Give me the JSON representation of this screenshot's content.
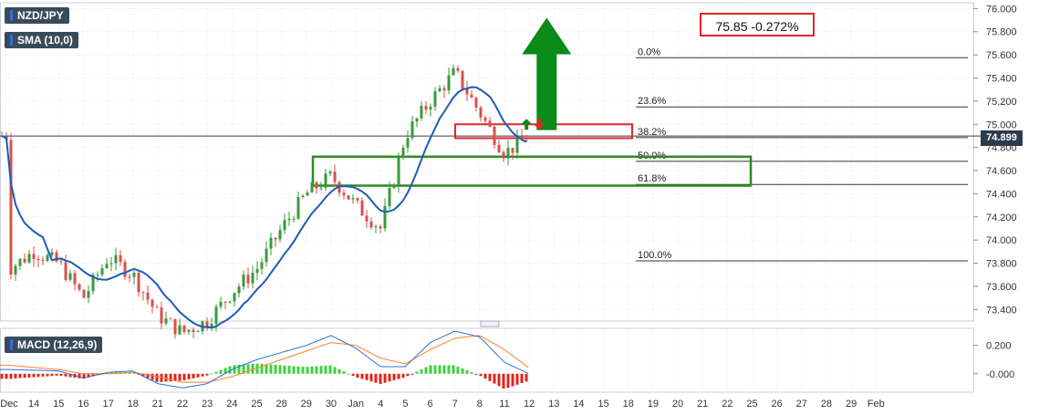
{
  "instrument": "NZD/JPY",
  "indicators": {
    "sma_label": "SMA (10,0)",
    "macd_label": "MACD (12,26,9)"
  },
  "quote": "75.85 -0.272%",
  "current_price_label": "74.899",
  "colors": {
    "up": "#3a9a3a",
    "down": "#d9504d",
    "sma": "#1e5bb8",
    "macd_line": "#2f6fd6",
    "signal_line": "#ff7f27",
    "hist_up": "#3cd23c",
    "hist_down": "#e2231a",
    "zone": "#2e8b1e",
    "box": "#e0262b",
    "arrow": "#0a8a17"
  },
  "chart_data": [
    {
      "type": "candlestick",
      "title": "NZD/JPY",
      "x_tick_labels": [
        "Dec",
        "14",
        "15",
        "16",
        "17",
        "18",
        "21",
        "22",
        "23",
        "24",
        "25",
        "28",
        "29",
        "30",
        "Jan",
        "4",
        "5",
        "6",
        "7",
        "8",
        "11",
        "12",
        "13",
        "14",
        "15",
        "18",
        "19",
        "20",
        "21",
        "22",
        "25",
        "26",
        "27",
        "28",
        "29",
        "Feb"
      ],
      "y_tick_labels": [
        "76.000",
        "75.800",
        "75.600",
        "75.400",
        "75.200",
        "75.000",
        "74.800",
        "74.600",
        "74.400",
        "74.200",
        "74.000",
        "73.800",
        "73.600",
        "73.400"
      ],
      "ylim": [
        73.3,
        76.05
      ],
      "fib_levels": [
        {
          "label": "0.0%",
          "value": 75.575
        },
        {
          "label": "23.6%",
          "value": 75.15
        },
        {
          "label": "38.2%",
          "value": 74.885
        },
        {
          "label": "50.0%",
          "value": 74.68
        },
        {
          "label": "61.8%",
          "value": 74.48
        },
        {
          "label": "100.0%",
          "value": 73.82
        }
      ],
      "current_price": 74.899,
      "zones": [
        {
          "kind": "support",
          "from_date": "28",
          "to_date": "21",
          "low": 74.47,
          "high": 74.72
        },
        {
          "kind": "resistance",
          "from_date": "5",
          "to_date": "15",
          "low": 74.88,
          "high": 75.0
        }
      ],
      "up_arrow": {
        "date": "13",
        "from": 74.95,
        "to": 75.92
      },
      "sma_period": 10,
      "candles_x": [
        0,
        1,
        2,
        3,
        4,
        5,
        6,
        7,
        8,
        9,
        10,
        11,
        12,
        13,
        14,
        15,
        16,
        17,
        18,
        19,
        20,
        21,
        22,
        23,
        24,
        25,
        26,
        27,
        28,
        29,
        30,
        31,
        32,
        33,
        34,
        35,
        36,
        37,
        38,
        39,
        40,
        41,
        42,
        43,
        44,
        45,
        46,
        47,
        48,
        49,
        50,
        51,
        52,
        53,
        54,
        55,
        56,
        57,
        58,
        59,
        60,
        61,
        62,
        63,
        64,
        65,
        66,
        67,
        68,
        69,
        70,
        71,
        72,
        73,
        74,
        75,
        76,
        77,
        78,
        79,
        80,
        81,
        82,
        83,
        84,
        85,
        86,
        87,
        88,
        89,
        90,
        91,
        92,
        93,
        94,
        95,
        96,
        97,
        98,
        99,
        100,
        101,
        102,
        103,
        104,
        105,
        106,
        107,
        108,
        109,
        110,
        111,
        112,
        113,
        114,
        115,
        116,
        117,
        118,
        119,
        120,
        121,
        122,
        123,
        124,
        125,
        126,
        127,
        128,
        129,
        130,
        131,
        132,
        133,
        134,
        135,
        136,
        137,
        138,
        139,
        140,
        141,
        142,
        143,
        144,
        145,
        146,
        147,
        148,
        149,
        150,
        151,
        152,
        153,
        154,
        155,
        156,
        157,
        158,
        159,
        160,
        161,
        162,
        163,
        164,
        165,
        166,
        167,
        168,
        169,
        170,
        171,
        172,
        173,
        174,
        175,
        176,
        177,
        178,
        179,
        180,
        181,
        182,
        183,
        184,
        185,
        186,
        187,
        188,
        189,
        190,
        191,
        192,
        193,
        194,
        195,
        196,
        197,
        198,
        199,
        200,
        201,
        202,
        203,
        204,
        205,
        206,
        207,
        208,
        209,
        210,
        211,
        212,
        213,
        214,
        215,
        216,
        217,
        218,
        219,
        220,
        221,
        222,
        223,
        224,
        225,
        226,
        227,
        228,
        229,
        230,
        231,
        232,
        233,
        234,
        235,
        236,
        237,
        238,
        239,
        240,
        241,
        242,
        243,
        244,
        245,
        246,
        247,
        248,
        249,
        250,
        251,
        252,
        253,
        254,
        255,
        256,
        257,
        258,
        259,
        260,
        261,
        262,
        263,
        264,
        265,
        266,
        267,
        268,
        269,
        270,
        271,
        272,
        273,
        274,
        275,
        276,
        277,
        278,
        279,
        280,
        281,
        282,
        283,
        284,
        285,
        286,
        287,
        288,
        289,
        290,
        291,
        292,
        293,
        294,
        295,
        296,
        297,
        298,
        299,
        300,
        301,
        302,
        303,
        304,
        305,
        306,
        307,
        308,
        309,
        310,
        311,
        312,
        313,
        314,
        315,
        316,
        317,
        318,
        319,
        320,
        321,
        322,
        323,
        324,
        325,
        326,
        327,
        328,
        329,
        330,
        331,
        332,
        333,
        334,
        335,
        336,
        337,
        338,
        339,
        340,
        341,
        342,
        343,
        344,
        345,
        346,
        347,
        348,
        349,
        350,
        351,
        352,
        353,
        354,
        355,
        356,
        357,
        358,
        359,
        360,
        361,
        362,
        363,
        364,
        365,
        366,
        367,
        368,
        369,
        370,
        371,
        372,
        373,
        374,
        375,
        376,
        377,
        378,
        379,
        380,
        381,
        382,
        383,
        384,
        385,
        386,
        387,
        388,
        389,
        390,
        391,
        392,
        393,
        394,
        395,
        396,
        397,
        398,
        399,
        400,
        401,
        402,
        403,
        404,
        405,
        406,
        407,
        408,
        409,
        410,
        411,
        412,
        413,
        414,
        415,
        416,
        417,
        418,
        419,
        420,
        421,
        422,
        423,
        424,
        425,
        426,
        427,
        428,
        429,
        430,
        431,
        432,
        433,
        434,
        435,
        436,
        437,
        438,
        439,
        440,
        441,
        442,
        443,
        444,
        445,
        446,
        447,
        448,
        449,
        450,
        451,
        452,
        453,
        454,
        455,
        456,
        457,
        458,
        459,
        460,
        461,
        462,
        463,
        464,
        465,
        466,
        467,
        468,
        469,
        470,
        471,
        472,
        473,
        474,
        475,
        476,
        477,
        478,
        479,
        480,
        481,
        482,
        483,
        484,
        485,
        486,
        487,
        488,
        489,
        490,
        491,
        492,
        493,
        494,
        495,
        496,
        497,
        498,
        499,
        500,
        501,
        502,
        503,
        504,
        505,
        506,
        507,
        508,
        509,
        510,
        511,
        512,
        513,
        514,
        515,
        516,
        517,
        518,
        519,
        520,
        521,
        522,
        523,
        524,
        525,
        526,
        527,
        528,
        529,
        530,
        531,
        532,
        533,
        534,
        535,
        536,
        537,
        538,
        539,
        540,
        541,
        542,
        543,
        544,
        545,
        546,
        547,
        548,
        549,
        550,
        551,
        552,
        553,
        554,
        555,
        556,
        557,
        558,
        559,
        560,
        561,
        562,
        563,
        564,
        565,
        566,
        567,
        568,
        569,
        570,
        571,
        572,
        573,
        574,
        575,
        576,
        577,
        578,
        579,
        580,
        581,
        582,
        583,
        584,
        585,
        586,
        587,
        588,
        589,
        590,
        591,
        592,
        593,
        594,
        595,
        596,
        597,
        598,
        599,
        600,
        601,
        602,
        603,
        604,
        605,
        606,
        607,
        608,
        609,
        610,
        611,
        612
      ],
      "closes_keypoints": [
        {
          "at": "Dec",
          "value": 73.75
        },
        {
          "at": "14",
          "value": 73.9
        },
        {
          "at": "15",
          "value": 73.8
        },
        {
          "at": "16",
          "value": 73.5
        },
        {
          "at": "17",
          "value": 73.85
        },
        {
          "at": "18",
          "value": 73.7
        },
        {
          "at": "21",
          "value": 73.35
        },
        {
          "at": "22",
          "value": 73.2
        },
        {
          "at": "23",
          "value": 73.3
        },
        {
          "at": "24",
          "value": 73.55
        },
        {
          "at": "25",
          "value": 73.75
        },
        {
          "at": "28",
          "value": 74.1
        },
        {
          "at": "29",
          "value": 74.4
        },
        {
          "at": "30",
          "value": 74.55
        },
        {
          "at": "Jan",
          "value": 74.3
        },
        {
          "at": "4",
          "value": 74.1
        },
        {
          "at": "5",
          "value": 74.9
        },
        {
          "at": "6",
          "value": 75.2
        },
        {
          "at": "7",
          "value": 75.45
        },
        {
          "at": "8",
          "value": 75.1
        },
        {
          "at": "11",
          "value": 74.75
        },
        {
          "at": "12",
          "value": 74.899
        }
      ]
    },
    {
      "type": "bar",
      "title": "MACD (12,26,9)",
      "y_tick_labels": [
        "0.200",
        "-0.000"
      ],
      "ylim": [
        -0.13,
        0.32
      ],
      "series": [
        {
          "name": "MACD",
          "values_keypoints": [
            {
              "at": "Dec",
              "value": 0.03
            },
            {
              "at": "15",
              "value": 0.02
            },
            {
              "at": "16",
              "value": -0.03
            },
            {
              "at": "17",
              "value": 0.01
            },
            {
              "at": "18",
              "value": 0.02
            },
            {
              "at": "21",
              "value": -0.07
            },
            {
              "at": "22",
              "value": -0.1
            },
            {
              "at": "23",
              "value": -0.07
            },
            {
              "at": "24",
              "value": 0.03
            },
            {
              "at": "25",
              "value": 0.1
            },
            {
              "at": "28",
              "value": 0.15
            },
            {
              "at": "29",
              "value": 0.2
            },
            {
              "at": "30",
              "value": 0.27
            },
            {
              "at": "Jan",
              "value": 0.18
            },
            {
              "at": "4",
              "value": 0.05
            },
            {
              "at": "5",
              "value": 0.05
            },
            {
              "at": "6",
              "value": 0.22
            },
            {
              "at": "7",
              "value": 0.3
            },
            {
              "at": "8",
              "value": 0.26
            },
            {
              "at": "11",
              "value": 0.08
            },
            {
              "at": "12",
              "value": 0.0
            }
          ]
        },
        {
          "name": "Signal",
          "values_keypoints": [
            {
              "at": "Dec",
              "value": 0.06
            },
            {
              "at": "15",
              "value": 0.03
            },
            {
              "at": "16",
              "value": 0.0
            },
            {
              "at": "17",
              "value": 0.0
            },
            {
              "at": "18",
              "value": 0.01
            },
            {
              "at": "21",
              "value": -0.02
            },
            {
              "at": "22",
              "value": -0.06
            },
            {
              "at": "23",
              "value": -0.06
            },
            {
              "at": "24",
              "value": -0.02
            },
            {
              "at": "25",
              "value": 0.04
            },
            {
              "at": "28",
              "value": 0.1
            },
            {
              "at": "29",
              "value": 0.16
            },
            {
              "at": "30",
              "value": 0.22
            },
            {
              "at": "Jan",
              "value": 0.2
            },
            {
              "at": "4",
              "value": 0.11
            },
            {
              "at": "5",
              "value": 0.07
            },
            {
              "at": "6",
              "value": 0.17
            },
            {
              "at": "7",
              "value": 0.25
            },
            {
              "at": "8",
              "value": 0.27
            },
            {
              "at": "11",
              "value": 0.17
            },
            {
              "at": "12",
              "value": 0.04
            }
          ]
        }
      ]
    }
  ]
}
